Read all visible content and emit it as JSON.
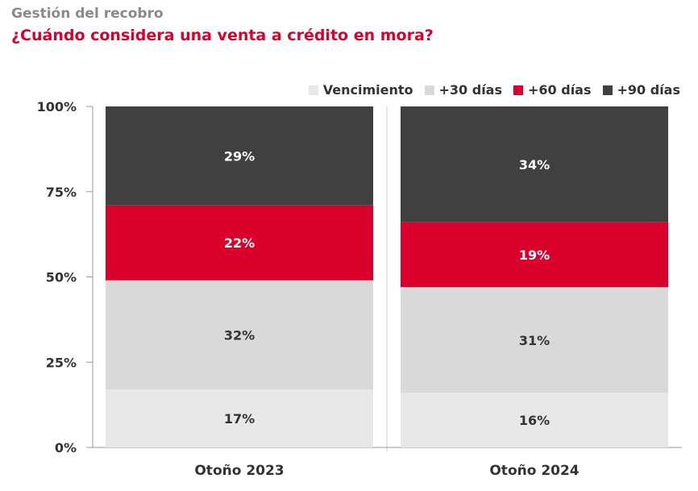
{
  "header": {
    "subtitle": "Gestión del recobro",
    "title": "¿Cuándo considera una venta a crédito en mora?"
  },
  "chart_data": {
    "type": "bar",
    "stacked": true,
    "categories": [
      "Otoño 2023",
      "Otoño 2024"
    ],
    "series": [
      {
        "name": "Vencimiento",
        "values": [
          17,
          16
        ],
        "labels": [
          "17%",
          "16%"
        ],
        "color": "#e8e8e8",
        "label_color": "#333333"
      },
      {
        "name": "+30 días",
        "values": [
          32,
          31
        ],
        "labels": [
          "32%",
          "31%"
        ],
        "color": "#d9d9d9",
        "label_color": "#333333"
      },
      {
        "name": "+60 días",
        "values": [
          22,
          19
        ],
        "labels": [
          "22%",
          "19%"
        ],
        "color": "#d9002b",
        "label_color": "#ffffff"
      },
      {
        "name": "+90 días",
        "values": [
          29,
          34
        ],
        "labels": [
          "29%",
          "34%"
        ],
        "color": "#404040",
        "label_color": "#ffffff"
      }
    ],
    "ylim": [
      0,
      100
    ],
    "yticks": [
      0,
      25,
      50,
      75,
      100
    ],
    "ytick_labels": [
      "0%",
      "25%",
      "50%",
      "75%",
      "100%"
    ],
    "legend_position": "top-right",
    "grid": false
  }
}
